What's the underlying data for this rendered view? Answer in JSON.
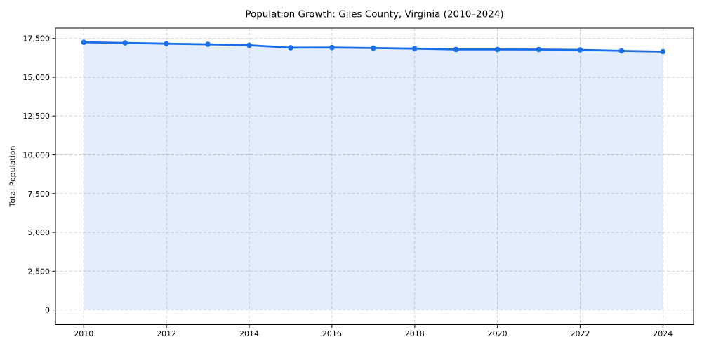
{
  "chart_data": {
    "type": "area",
    "title": "Population Growth: Giles County, Virginia (2010–2024)",
    "xlabel": "",
    "ylabel": "Total Population",
    "x": [
      2010,
      2011,
      2012,
      2013,
      2014,
      2015,
      2016,
      2017,
      2018,
      2019,
      2020,
      2021,
      2022,
      2023,
      2024
    ],
    "series": [
      {
        "name": "Total Population",
        "values": [
          17250,
          17210,
          17160,
          17120,
          17060,
          16900,
          16910,
          16880,
          16845,
          16790,
          16790,
          16785,
          16760,
          16700,
          16650
        ]
      }
    ],
    "xticks": [
      2010,
      2012,
      2014,
      2016,
      2018,
      2020,
      2022,
      2024
    ],
    "xtick_labels": [
      "2010",
      "2012",
      "2014",
      "2016",
      "2018",
      "2020",
      "2022",
      "2024"
    ],
    "yticks": [
      0,
      2500,
      5000,
      7500,
      10000,
      12500,
      15000,
      17500
    ],
    "ytick_labels": [
      "0",
      "2,500",
      "5,000",
      "7,500",
      "10,000",
      "12,500",
      "15,000",
      "17,500"
    ],
    "xlim": [
      2009.316,
      2024.741
    ],
    "ylim": [
      -945,
      18164
    ],
    "grid": true,
    "grid_style": "dashed",
    "legend": "none",
    "marker": "circle",
    "colors": {
      "line": "#1a6ee8",
      "marker": "#1a6ee8",
      "fill": "rgba(26, 110, 232, 0.12)",
      "grid": "#cccccc",
      "axis": "#000000",
      "text": "#000000",
      "background": "#ffffff"
    }
  }
}
